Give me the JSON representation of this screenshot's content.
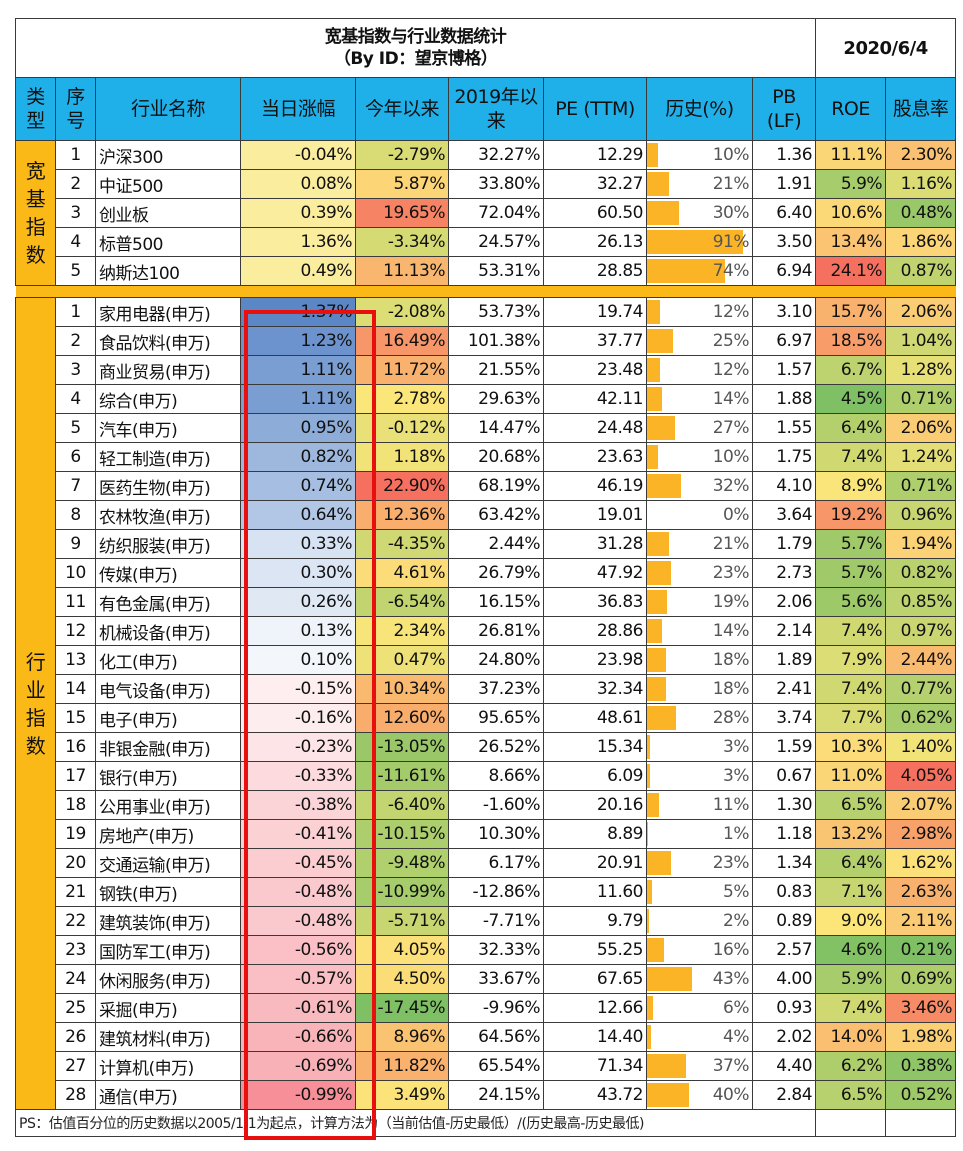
{
  "title": "宽基指数与行业数据统计",
  "subtitle": "（By ID：望京博格）",
  "date": "2020/6/4",
  "headers": [
    "类型",
    "序号",
    "行业名称",
    "当日涨幅",
    "今年以来",
    "2019年以来",
    "PE (TTM)",
    "历史(%)",
    "PB (LF)",
    "ROE",
    "股息率"
  ],
  "groups": [
    {
      "label": "宽基指数"
    },
    {
      "label": "行业指数"
    }
  ],
  "broad": [
    [
      "1",
      "沪深300",
      "-0.04%",
      "-2.79%",
      "32.27%",
      "12.29",
      "10%",
      "1.36",
      "11.1%",
      "2.30%"
    ],
    [
      "2",
      "中证500",
      "0.08%",
      "5.87%",
      "33.80%",
      "32.27",
      "21%",
      "1.91",
      "5.9%",
      "1.16%"
    ],
    [
      "3",
      "创业板",
      "0.39%",
      "19.65%",
      "72.04%",
      "60.50",
      "30%",
      "6.40",
      "10.6%",
      "0.48%"
    ],
    [
      "4",
      "标普500",
      "1.36%",
      "-3.34%",
      "24.57%",
      "26.13",
      "91%",
      "3.50",
      "13.4%",
      "1.86%"
    ],
    [
      "5",
      "纳斯达100",
      "0.49%",
      "11.13%",
      "53.31%",
      "28.85",
      "74%",
      "6.94",
      "24.1%",
      "0.87%"
    ]
  ],
  "industry": [
    [
      "1",
      "家用电器(申万)",
      "1.37%",
      "-2.08%",
      "53.73%",
      "19.74",
      "12%",
      "3.10",
      "15.7%",
      "2.06%"
    ],
    [
      "2",
      "食品饮料(申万)",
      "1.23%",
      "16.49%",
      "101.38%",
      "37.77",
      "25%",
      "6.97",
      "18.5%",
      "1.04%"
    ],
    [
      "3",
      "商业贸易(申万)",
      "1.11%",
      "11.72%",
      "21.55%",
      "23.48",
      "12%",
      "1.57",
      "6.7%",
      "1.28%"
    ],
    [
      "4",
      "综合(申万)",
      "1.11%",
      "2.78%",
      "29.63%",
      "42.11",
      "14%",
      "1.88",
      "4.5%",
      "0.71%"
    ],
    [
      "5",
      "汽车(申万)",
      "0.95%",
      "-0.12%",
      "14.47%",
      "24.48",
      "27%",
      "1.55",
      "6.4%",
      "2.06%"
    ],
    [
      "6",
      "轻工制造(申万)",
      "0.82%",
      "1.18%",
      "20.68%",
      "23.63",
      "10%",
      "1.75",
      "7.4%",
      "1.24%"
    ],
    [
      "7",
      "医药生物(申万)",
      "0.74%",
      "22.90%",
      "68.19%",
      "46.19",
      "32%",
      "4.10",
      "8.9%",
      "0.71%"
    ],
    [
      "8",
      "农林牧渔(申万)",
      "0.64%",
      "12.36%",
      "63.42%",
      "19.01",
      "0%",
      "3.64",
      "19.2%",
      "0.96%"
    ],
    [
      "9",
      "纺织服装(申万)",
      "0.33%",
      "-4.35%",
      "2.44%",
      "31.28",
      "21%",
      "1.79",
      "5.7%",
      "1.94%"
    ],
    [
      "10",
      "传媒(申万)",
      "0.30%",
      "4.61%",
      "26.79%",
      "47.92",
      "23%",
      "2.73",
      "5.7%",
      "0.82%"
    ],
    [
      "11",
      "有色金属(申万)",
      "0.26%",
      "-6.54%",
      "16.15%",
      "36.83",
      "19%",
      "2.06",
      "5.6%",
      "0.85%"
    ],
    [
      "12",
      "机械设备(申万)",
      "0.13%",
      "2.34%",
      "26.81%",
      "28.86",
      "14%",
      "2.14",
      "7.4%",
      "0.97%"
    ],
    [
      "13",
      "化工(申万)",
      "0.10%",
      "0.47%",
      "24.80%",
      "23.98",
      "18%",
      "1.89",
      "7.9%",
      "2.44%"
    ],
    [
      "14",
      "电气设备(申万)",
      "-0.15%",
      "10.34%",
      "37.23%",
      "32.34",
      "18%",
      "2.41",
      "7.4%",
      "0.77%"
    ],
    [
      "15",
      "电子(申万)",
      "-0.16%",
      "12.60%",
      "95.65%",
      "48.61",
      "28%",
      "3.74",
      "7.7%",
      "0.62%"
    ],
    [
      "16",
      "非银金融(申万)",
      "-0.23%",
      "-13.05%",
      "26.52%",
      "15.34",
      "3%",
      "1.59",
      "10.3%",
      "1.40%"
    ],
    [
      "17",
      "银行(申万)",
      "-0.33%",
      "-11.61%",
      "8.66%",
      "6.09",
      "3%",
      "0.67",
      "11.0%",
      "4.05%"
    ],
    [
      "18",
      "公用事业(申万)",
      "-0.38%",
      "-6.40%",
      "-1.60%",
      "20.16",
      "11%",
      "1.30",
      "6.5%",
      "2.07%"
    ],
    [
      "19",
      "房地产(申万)",
      "-0.41%",
      "-10.15%",
      "10.30%",
      "8.89",
      "1%",
      "1.18",
      "13.2%",
      "2.98%"
    ],
    [
      "20",
      "交通运输(申万)",
      "-0.45%",
      "-9.48%",
      "6.17%",
      "20.91",
      "23%",
      "1.34",
      "6.4%",
      "1.62%"
    ],
    [
      "21",
      "钢铁(申万)",
      "-0.48%",
      "-10.99%",
      "-12.86%",
      "11.60",
      "5%",
      "0.83",
      "7.1%",
      "2.63%"
    ],
    [
      "22",
      "建筑装饰(申万)",
      "-0.48%",
      "-5.71%",
      "-7.71%",
      "9.79",
      "2%",
      "0.89",
      "9.0%",
      "2.11%"
    ],
    [
      "23",
      "国防军工(申万)",
      "-0.56%",
      "4.05%",
      "32.33%",
      "55.25",
      "16%",
      "2.57",
      "4.6%",
      "0.21%"
    ],
    [
      "24",
      "休闲服务(申万)",
      "-0.57%",
      "4.50%",
      "33.67%",
      "67.65",
      "43%",
      "4.00",
      "5.9%",
      "0.69%"
    ],
    [
      "25",
      "采掘(申万)",
      "-0.61%",
      "-17.45%",
      "-9.96%",
      "12.66",
      "6%",
      "0.93",
      "7.4%",
      "3.46%"
    ],
    [
      "26",
      "建筑材料(申万)",
      "-0.66%",
      "8.96%",
      "64.56%",
      "14.40",
      "4%",
      "2.02",
      "14.0%",
      "1.98%"
    ],
    [
      "27",
      "计算机(申万)",
      "-0.69%",
      "11.82%",
      "65.54%",
      "71.34",
      "37%",
      "4.40",
      "6.2%",
      "0.38%"
    ],
    [
      "28",
      "通信(申万)",
      "-0.99%",
      "3.49%",
      "24.15%",
      "43.72",
      "40%",
      "2.84",
      "6.5%",
      "0.52%"
    ]
  ],
  "footnote": "PS：估值百分位的历史数据以2005/1/1为起点，计算方法为（当前估值-历史最低）/(历史最高-历史最低)",
  "colors": {
    "header": "#1fb0ea",
    "group": "#fbb917",
    "bar": "#fbb425",
    "highlight": "#e80f0f",
    "pos": "#5b87c7",
    "neg": "#f26470",
    "low": "#7fc064",
    "mid": "#fce67a",
    "high": "#f5705f"
  }
}
